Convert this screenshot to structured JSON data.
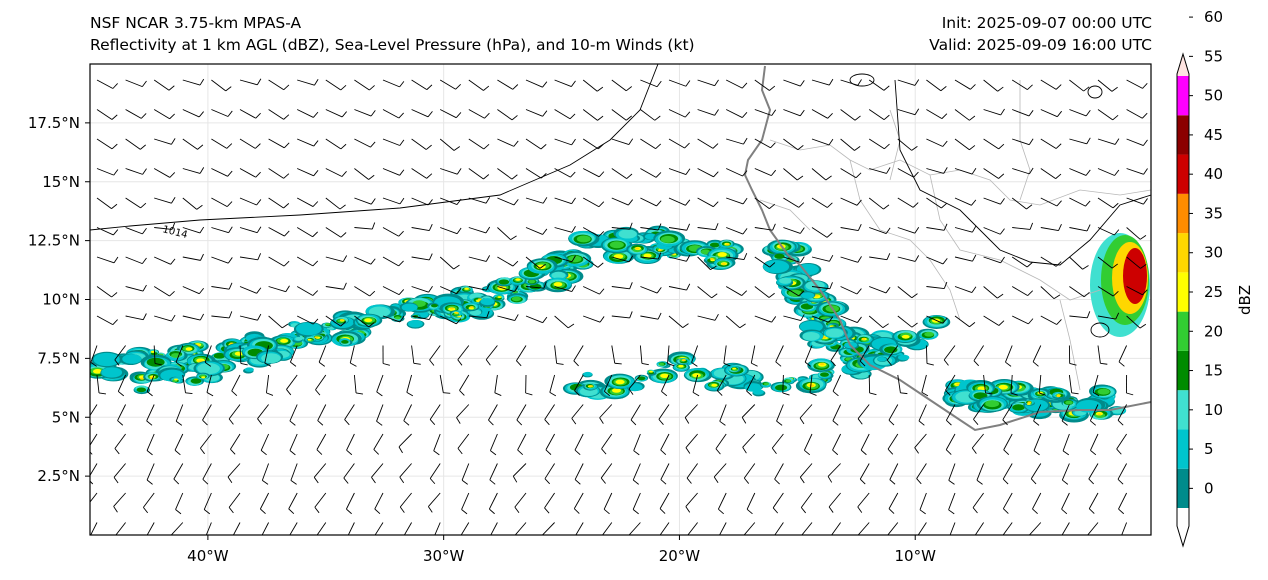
{
  "header": {
    "model": "NSF NCAR 3.75-km MPAS-A",
    "fields": "Reflectivity at 1 km AGL (dBZ), Sea-Level Pressure (hPa), and 10-m Winds (kt)",
    "init": "Init: 2025-09-07 00:00 UTC",
    "valid": "Valid: 2025-09-09 16:00 UTC"
  },
  "map": {
    "lon_range": [
      -45,
      0
    ],
    "lat_range": [
      0,
      20
    ],
    "lon_ticks": [
      {
        "value": -40,
        "label": "40°W"
      },
      {
        "value": -30,
        "label": "30°W"
      },
      {
        "value": -20,
        "label": "20°W"
      },
      {
        "value": -10,
        "label": "10°W"
      }
    ],
    "lat_ticks": [
      {
        "value": 2.5,
        "label": "2.5°N"
      },
      {
        "value": 5,
        "label": "5°N"
      },
      {
        "value": 7.5,
        "label": "7.5°N"
      },
      {
        "value": 10,
        "label": "10°N"
      },
      {
        "value": 12.5,
        "label": "12.5°N"
      },
      {
        "value": 15,
        "label": "15°N"
      },
      {
        "value": 17.5,
        "label": "17.5°N"
      }
    ],
    "isobar_label": "1014"
  },
  "colorbar": {
    "label": "dBZ",
    "levels": [
      0,
      5,
      10,
      15,
      20,
      25,
      30,
      35,
      40,
      45,
      50,
      55,
      60
    ],
    "colors": [
      "#008b8b",
      "#00c5cd",
      "#40e0d0",
      "#008b00",
      "#32cd32",
      "#ffff00",
      "#ffd700",
      "#ff8c00",
      "#cd0000",
      "#8b0000",
      "#ff00ff",
      "#ffe4e1"
    ]
  }
}
